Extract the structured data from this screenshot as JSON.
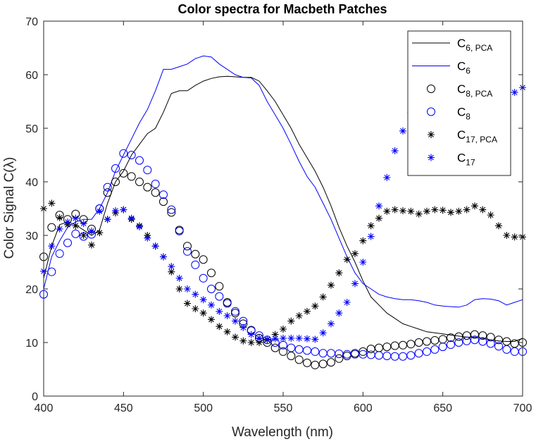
{
  "chart_data": {
    "type": "line",
    "title": "Color spectra for Macbeth Patches",
    "xlabel": "Wavelength (nm)",
    "ylabel": "Color Signal C(λ)",
    "xlim": [
      400,
      700
    ],
    "ylim": [
      0,
      70
    ],
    "xticks": [
      "400",
      "450",
      "500",
      "550",
      "600",
      "650",
      "700"
    ],
    "yticks": [
      "0",
      "10",
      "20",
      "30",
      "40",
      "50",
      "60",
      "70"
    ],
    "grid": false,
    "legend_position": "top-right",
    "x": [
      400,
      405,
      410,
      415,
      420,
      425,
      430,
      435,
      440,
      445,
      450,
      455,
      460,
      465,
      470,
      475,
      480,
      485,
      490,
      495,
      500,
      505,
      510,
      515,
      520,
      525,
      530,
      535,
      540,
      545,
      550,
      555,
      560,
      565,
      570,
      575,
      580,
      585,
      590,
      595,
      600,
      605,
      610,
      615,
      620,
      625,
      630,
      635,
      640,
      645,
      650,
      655,
      660,
      665,
      670,
      675,
      680,
      685,
      690,
      695,
      700
    ],
    "series": [
      {
        "name_main": "C",
        "name_sub": "6, PCA",
        "style": "line",
        "color": "#000000",
        "values": [
          22,
          28,
          32,
          32.5,
          32,
          31,
          30,
          31,
          36,
          40,
          42,
          45,
          47,
          49,
          50,
          53,
          56.5,
          57,
          57,
          58,
          58.8,
          59.3,
          59.6,
          59.7,
          59.6,
          59.5,
          59.5,
          58.8,
          57,
          55,
          52.5,
          50,
          47,
          44.5,
          42,
          39,
          35.5,
          31.5,
          28,
          25,
          21.5,
          18.5,
          17,
          15.5,
          14.5,
          13.5,
          13,
          12.5,
          12,
          11.8,
          11.6,
          11.4,
          11.2,
          11,
          11,
          10.8,
          10.5,
          10.3,
          10.2,
          10.2,
          10.8
        ]
      },
      {
        "name_main": "C",
        "name_sub": "6",
        "style": "line",
        "color": "#0000ff",
        "values": [
          20,
          26,
          29,
          31.5,
          32.5,
          33,
          33,
          35,
          38,
          42,
          45,
          48,
          51,
          53.5,
          57,
          61,
          61,
          61.5,
          62,
          63,
          63.5,
          63.3,
          62,
          61,
          60,
          59.5,
          59.4,
          58,
          55,
          52.5,
          50,
          47,
          43.8,
          41,
          39,
          36,
          33,
          29.5,
          26,
          23,
          21,
          20,
          19,
          18.5,
          18.2,
          18,
          18,
          17.8,
          17.5,
          17,
          16.8,
          16.7,
          16.6,
          17,
          18,
          18.2,
          18.1,
          17.8,
          17,
          17.5,
          18
        ]
      },
      {
        "name_main": "C",
        "name_sub": "8, PCA",
        "style": "circle",
        "color": "#000000",
        "values": [
          26,
          31.5,
          33.8,
          33,
          34,
          33,
          31.2,
          35,
          38,
          40,
          41.6,
          41,
          40,
          39,
          38,
          36.3,
          34.3,
          31,
          28,
          26.5,
          25.5,
          23,
          20.5,
          17.5,
          15.5,
          13.5,
          12.3,
          10.8,
          10,
          9,
          8.3,
          7.5,
          6.8,
          6.2,
          5.8,
          6,
          6.3,
          7,
          7.5,
          8,
          8.3,
          8.8,
          9,
          9.2,
          9.4,
          9.5,
          9.7,
          10,
          10.2,
          10.4,
          10.6,
          10.9,
          11.1,
          11.3,
          11.5,
          11.3,
          11,
          10.5,
          10.2,
          9.8,
          10
        ]
      },
      {
        "name_main": "C",
        "name_sub": "8",
        "style": "circle",
        "color": "#0000ff",
        "values": [
          19,
          23.2,
          26.6,
          28.6,
          30.3,
          29.8,
          30.2,
          35,
          39,
          42.5,
          45.3,
          45,
          44,
          42.2,
          39.6,
          37.6,
          34.8,
          30.8,
          27,
          24.5,
          22,
          20,
          18.6,
          17.3,
          15.8,
          14,
          12.2,
          11.3,
          10.5,
          10,
          9.5,
          9,
          8.7,
          8.5,
          8.3,
          8,
          8,
          7.9,
          7.8,
          7.8,
          7.8,
          7.7,
          7.6,
          7.5,
          7.4,
          7.4,
          7.6,
          8,
          8.3,
          8.7,
          9.2,
          9.6,
          10,
          10.3,
          10.5,
          10.2,
          9.8,
          9.3,
          8.7,
          8.3,
          8.3
        ]
      },
      {
        "name_main": "C",
        "name_sub": "17, PCA",
        "style": "star",
        "color": "#000000",
        "values": [
          35,
          36,
          33.3,
          32,
          31.8,
          30,
          28.2,
          30.5,
          33,
          34.2,
          34.8,
          33,
          31.8,
          30,
          28,
          26,
          23.2,
          20,
          17.3,
          16.3,
          15.5,
          14.3,
          13,
          12,
          11,
          10.3,
          10,
          10,
          10.5,
          11.5,
          12.5,
          14,
          15,
          15.8,
          16.8,
          18.5,
          20.7,
          23,
          25.5,
          26.6,
          29,
          31.8,
          33.2,
          34.5,
          34.8,
          34.6,
          34.5,
          34,
          34.5,
          34.8,
          34.7,
          34.3,
          34.5,
          34.8,
          35.5,
          34.8,
          33.8,
          31.8,
          30,
          29.7,
          29.7
        ]
      },
      {
        "name_main": "C",
        "name_sub": "17",
        "style": "star",
        "color": "#0000ff",
        "values": [
          23.3,
          28,
          31.2,
          32.5,
          33.2,
          32.2,
          30.8,
          34.5,
          33,
          34.6,
          34.8,
          33.2,
          31.6,
          29.5,
          28,
          26,
          24.2,
          22,
          20,
          19,
          18,
          17,
          15.8,
          15,
          14,
          12.8,
          11.5,
          10.8,
          10.6,
          10.7,
          10.8,
          10.8,
          10.8,
          10.7,
          10.6,
          11.8,
          13.5,
          15.5,
          17.5,
          21,
          25,
          29.8,
          35.5,
          40.8,
          45.8,
          49.5,
          53,
          55,
          56.5,
          57.5,
          57.5,
          57.5,
          57.5,
          57.5,
          57.5,
          57.5,
          57.5,
          57.5,
          57.5,
          56.7,
          57.6
        ]
      }
    ]
  }
}
